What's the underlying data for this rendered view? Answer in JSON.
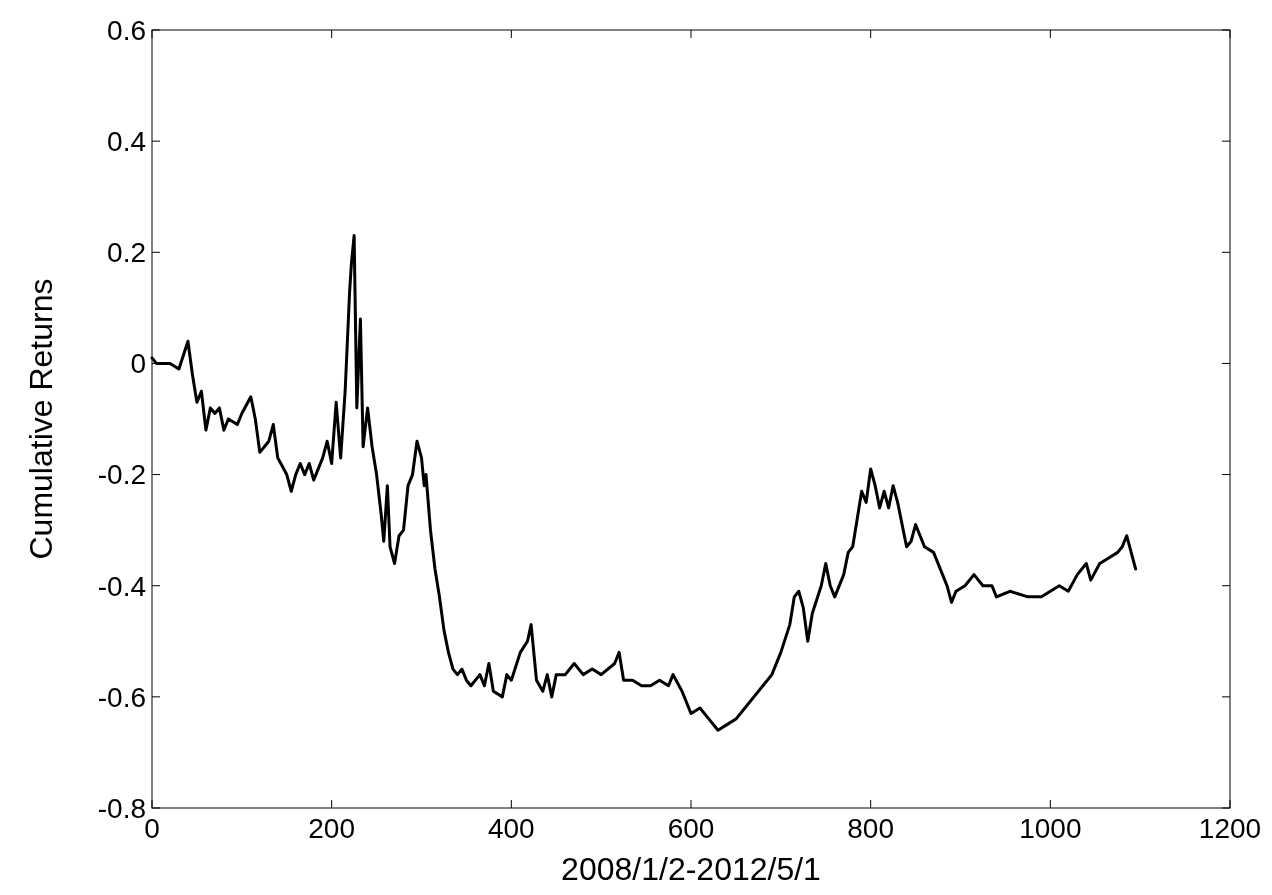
{
  "chart_data": {
    "type": "line",
    "xlabel": "2008/1/2-2012/5/1",
    "ylabel": "Cumulative Returns",
    "xlim": [
      0,
      1200
    ],
    "xticks": [
      0,
      200,
      400,
      600,
      800,
      1000,
      1200
    ],
    "ylim": [
      -0.8,
      0.6
    ],
    "yticks": [
      -0.8,
      -0.6,
      -0.4,
      -0.2,
      0,
      0.2,
      0.4,
      0.6
    ],
    "marker": "none",
    "line_style": "solid",
    "series": [
      {
        "color": "#000000",
        "x": [
          0,
          5,
          20,
          30,
          40,
          45,
          50,
          55,
          60,
          65,
          70,
          75,
          80,
          85,
          95,
          100,
          110,
          115,
          120,
          130,
          135,
          140,
          150,
          155,
          160,
          165,
          170,
          175,
          180,
          190,
          195,
          200,
          205,
          210,
          215,
          220,
          222,
          225,
          228,
          232,
          235,
          240,
          245,
          250,
          255,
          258,
          262,
          265,
          270,
          275,
          280,
          285,
          290,
          295,
          300,
          303,
          305,
          310,
          315,
          320,
          325,
          330,
          335,
          340,
          345,
          350,
          355,
          365,
          370,
          375,
          380,
          390,
          395,
          400,
          410,
          418,
          422,
          428,
          435,
          440,
          445,
          450,
          460,
          470,
          480,
          490,
          500,
          515,
          520,
          525,
          535,
          545,
          555,
          565,
          575,
          580,
          590,
          600,
          610,
          620,
          630,
          640,
          650,
          660,
          670,
          680,
          690,
          700,
          710,
          715,
          720,
          725,
          730,
          735,
          745,
          750,
          755,
          760,
          770,
          775,
          780,
          785,
          790,
          795,
          800,
          805,
          810,
          815,
          820,
          825,
          830,
          840,
          845,
          850,
          855,
          860,
          870,
          880,
          885,
          890,
          895,
          905,
          915,
          925,
          935,
          940,
          955,
          975,
          990,
          1000,
          1010,
          1020,
          1030,
          1040,
          1045,
          1055,
          1065,
          1075,
          1080,
          1085,
          1090,
          1095
        ],
        "values": [
          0.01,
          0.0,
          0.0,
          -0.01,
          0.04,
          -0.02,
          -0.07,
          -0.05,
          -0.12,
          -0.08,
          -0.09,
          -0.08,
          -0.12,
          -0.1,
          -0.11,
          -0.09,
          -0.06,
          -0.1,
          -0.16,
          -0.14,
          -0.11,
          -0.17,
          -0.2,
          -0.23,
          -0.2,
          -0.18,
          -0.2,
          -0.18,
          -0.21,
          -0.17,
          -0.14,
          -0.18,
          -0.07,
          -0.17,
          -0.05,
          0.13,
          0.18,
          0.23,
          -0.08,
          0.08,
          -0.15,
          -0.08,
          -0.15,
          -0.2,
          -0.27,
          -0.32,
          -0.22,
          -0.33,
          -0.36,
          -0.31,
          -0.3,
          -0.22,
          -0.2,
          -0.14,
          -0.17,
          -0.22,
          -0.2,
          -0.3,
          -0.37,
          -0.42,
          -0.48,
          -0.52,
          -0.55,
          -0.56,
          -0.55,
          -0.57,
          -0.58,
          -0.56,
          -0.58,
          -0.54,
          -0.59,
          -0.6,
          -0.56,
          -0.57,
          -0.52,
          -0.5,
          -0.47,
          -0.57,
          -0.59,
          -0.56,
          -0.6,
          -0.56,
          -0.56,
          -0.54,
          -0.56,
          -0.55,
          -0.56,
          -0.54,
          -0.52,
          -0.57,
          -0.57,
          -0.58,
          -0.58,
          -0.57,
          -0.58,
          -0.56,
          -0.59,
          -0.63,
          -0.62,
          -0.64,
          -0.66,
          -0.65,
          -0.64,
          -0.62,
          -0.6,
          -0.58,
          -0.56,
          -0.52,
          -0.47,
          -0.42,
          -0.41,
          -0.44,
          -0.5,
          -0.45,
          -0.4,
          -0.36,
          -0.4,
          -0.42,
          -0.38,
          -0.34,
          -0.33,
          -0.28,
          -0.23,
          -0.25,
          -0.19,
          -0.22,
          -0.26,
          -0.23,
          -0.26,
          -0.22,
          -0.25,
          -0.33,
          -0.32,
          -0.29,
          -0.31,
          -0.33,
          -0.34,
          -0.38,
          -0.4,
          -0.43,
          -0.41,
          -0.4,
          -0.38,
          -0.4,
          -0.4,
          -0.42,
          -0.41,
          -0.42,
          -0.42,
          -0.41,
          -0.4,
          -0.41,
          -0.38,
          -0.36,
          -0.39,
          -0.36,
          -0.35,
          -0.34,
          -0.33,
          -0.31,
          -0.34,
          -0.37
        ]
      }
    ]
  }
}
